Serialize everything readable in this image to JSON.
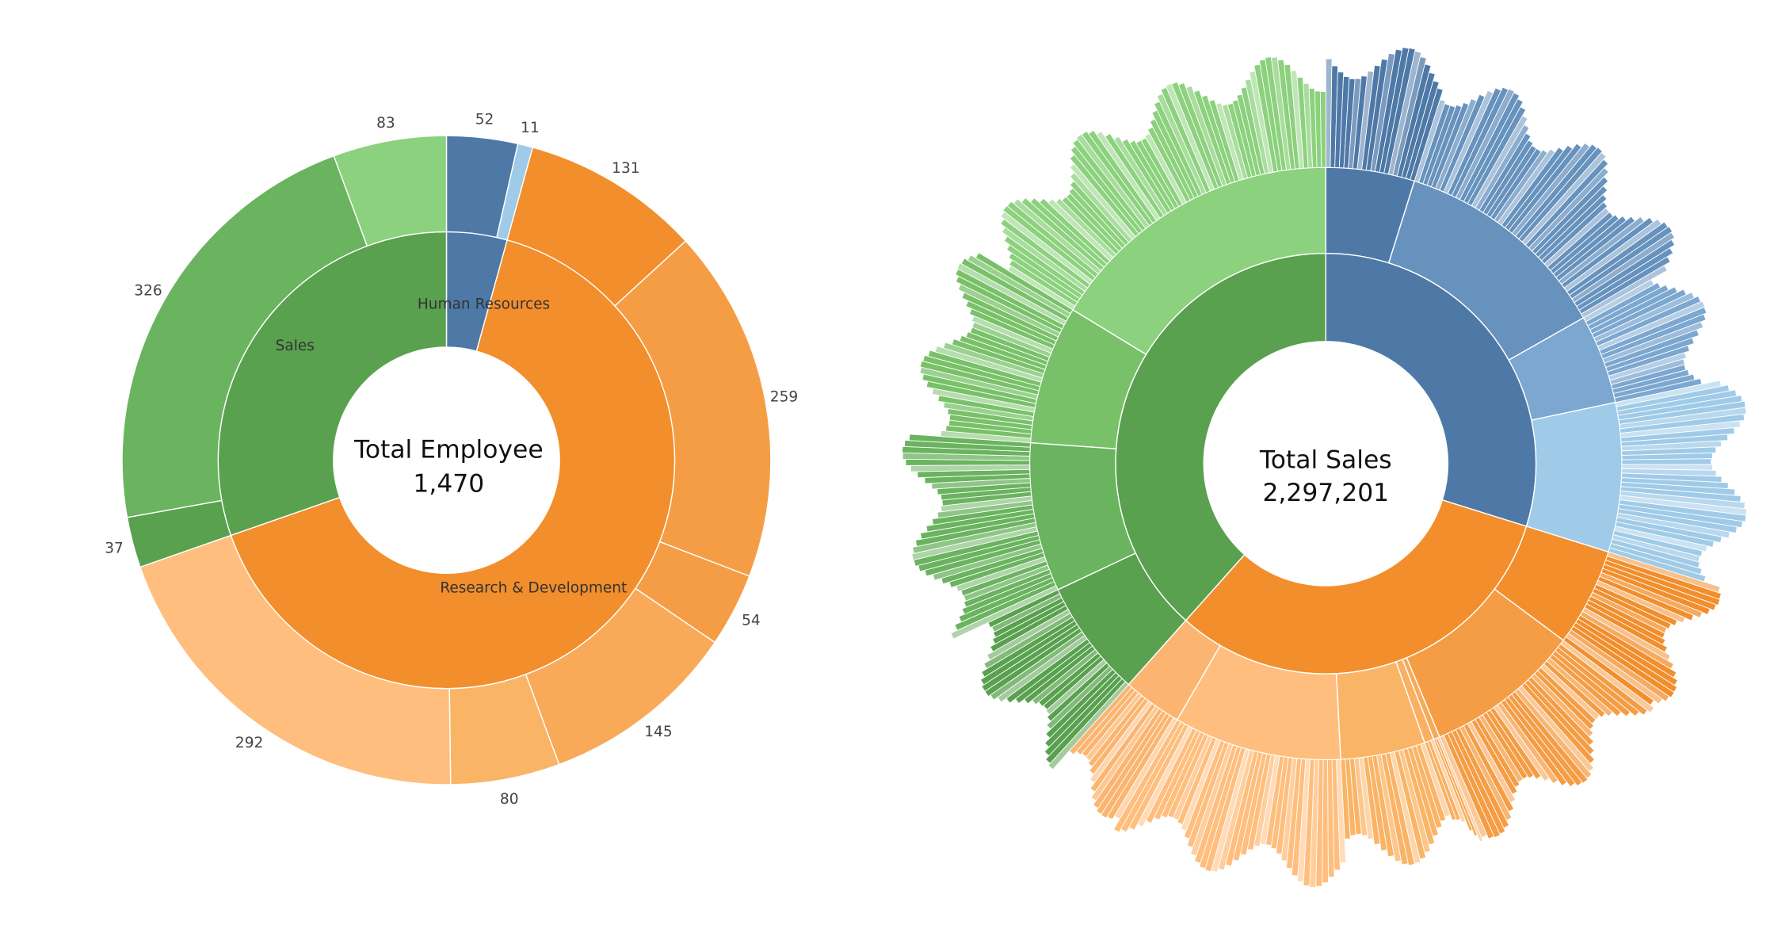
{
  "chart_data": [
    {
      "type": "sunburst",
      "center": {
        "title": "Total Employee",
        "value": "1,470"
      },
      "departments": [
        {
          "name": "Human Resources",
          "value": 63,
          "color": "#4e79a7",
          "children": [
            {
              "label": "52",
              "value": 52,
              "color": "#4e79a7"
            },
            {
              "label": "11",
              "value": 11,
              "color": "#a0cbe8"
            }
          ]
        },
        {
          "name": "Research & Development",
          "value": 961,
          "color": "#f28e2b",
          "children": [
            {
              "label": "131",
              "value": 131,
              "color": "#f28e2b"
            },
            {
              "label": "259",
              "value": 259,
              "color": "#f59d45"
            },
            {
              "label": "54",
              "value": 54,
              "color": "#f59d45"
            },
            {
              "label": "145",
              "value": 145,
              "color": "#f8aa58"
            },
            {
              "label": "80",
              "value": 80,
              "color": "#fab466"
            },
            {
              "label": "292",
              "value": 292,
              "color": "#ffbe7d"
            }
          ]
        },
        {
          "name": "Sales",
          "value": 446,
          "color": "#59a14f",
          "children": [
            {
              "label": "37",
              "value": 37,
              "color": "#59a14f"
            },
            {
              "label": "326",
              "value": 326,
              "color": "#6ab35f"
            },
            {
              "label": "83",
              "value": 83,
              "color": "#8cd17d"
            }
          ]
        }
      ]
    },
    {
      "type": "sunburst",
      "center": {
        "title": "Total Sales",
        "value": "2,297,201"
      },
      "inner": [
        {
          "value": 0.2982,
          "color": "#4e79a7"
        },
        {
          "value": 0.3178,
          "color": "#f28e2b"
        },
        {
          "value": 0.384,
          "color": "#59a14f"
        }
      ],
      "middle": [
        {
          "value": 0.0484,
          "color": "#4e79a7"
        },
        {
          "value": 0.1197,
          "color": "#6692bd"
        },
        {
          "value": 0.0488,
          "color": "#7ba7d0"
        },
        {
          "value": 0.0813,
          "color": "#a0cbe8"
        },
        {
          "value": 0.0536,
          "color": "#f28e2b"
        },
        {
          "value": 0.0854,
          "color": "#f59d45"
        },
        {
          "value": 0.0034,
          "color": "#f8aa58"
        },
        {
          "value": 0.0052,
          "color": "#f9b062"
        },
        {
          "value": 0.0462,
          "color": "#fab466"
        },
        {
          "value": 0.0917,
          "color": "#ffbe7d"
        },
        {
          "value": 0.0323,
          "color": "#fbb570"
        },
        {
          "value": 0.064,
          "color": "#59a14f"
        },
        {
          "value": 0.0812,
          "color": "#6ab35f"
        },
        {
          "value": 0.0757,
          "color": "#79c169"
        },
        {
          "value": 0.1631,
          "color": "#8cd17d"
        }
      ]
    }
  ]
}
